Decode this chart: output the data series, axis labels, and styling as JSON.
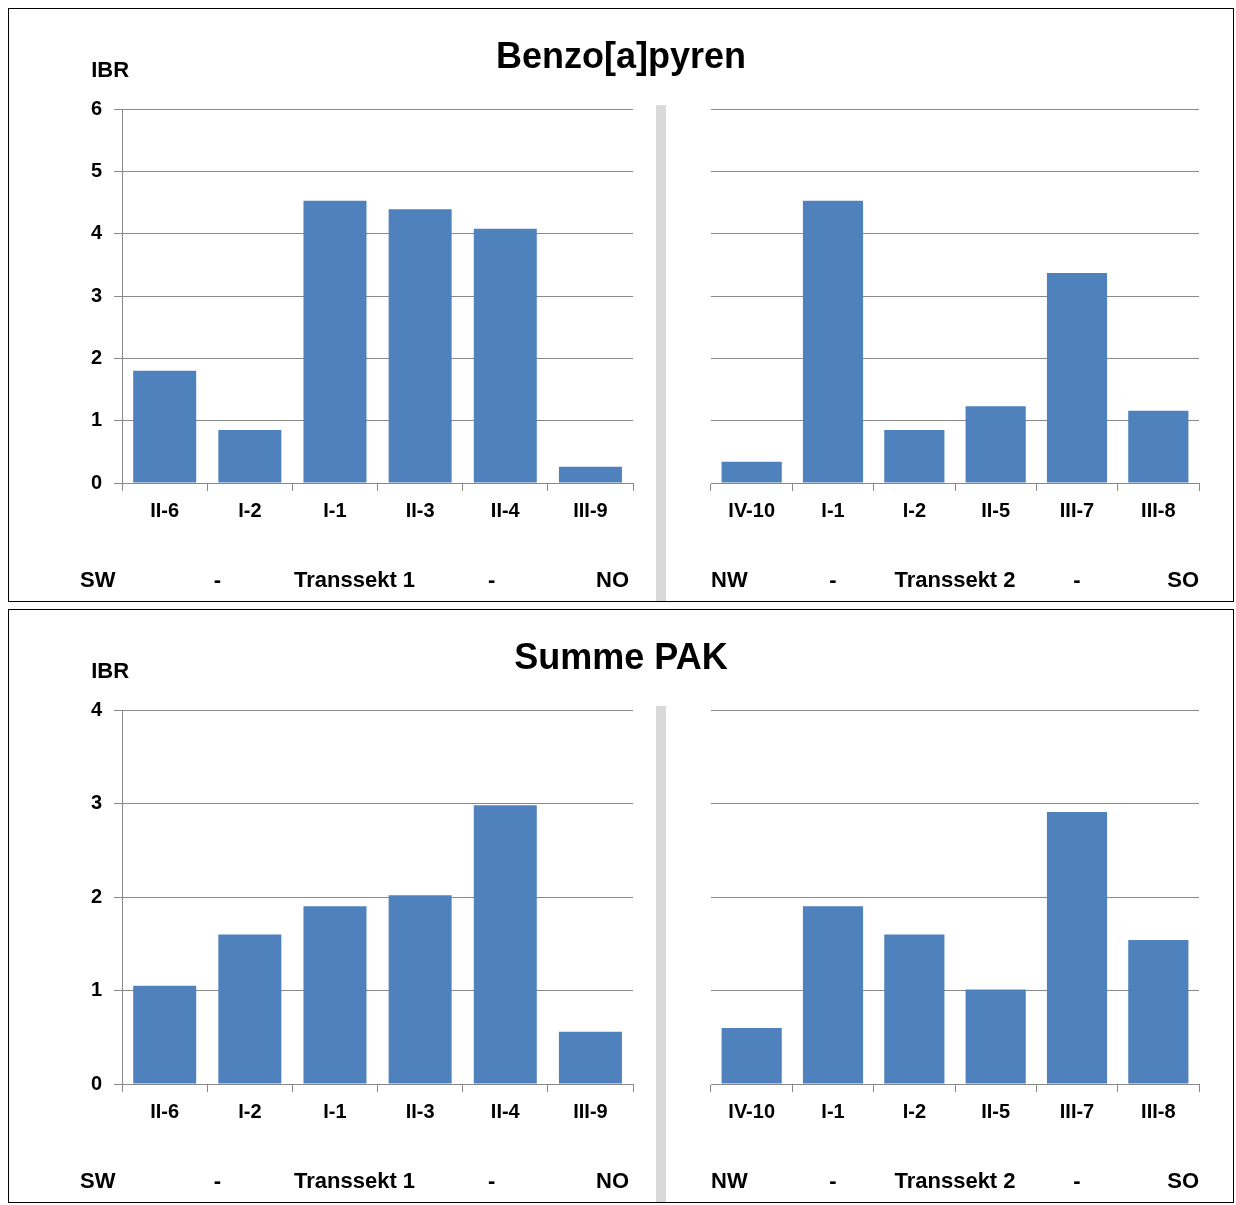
{
  "chart_data": [
    {
      "type": "bar",
      "title": "Benzo[a]pyren",
      "ylabel": "IBR",
      "categories": [
        "II-6",
        "I-2",
        "I-1",
        "II-3",
        "II-4",
        "III-9"
      ],
      "values": [
        1.8,
        0.85,
        4.53,
        4.39,
        4.08,
        0.26
      ],
      "color": "#4f81bd",
      "ylim": [
        0,
        6
      ],
      "yticks": [
        0,
        1,
        2,
        3,
        4,
        5,
        6
      ],
      "grid": "y",
      "annotations": [
        "SW",
        "-",
        "Transsekt 1",
        "-",
        "NO"
      ]
    },
    {
      "type": "bar",
      "categories": [
        "IV-10",
        "I-1",
        "I-2",
        "II-5",
        "III-7",
        "III-8"
      ],
      "values": [
        0.34,
        4.53,
        0.85,
        1.23,
        3.37,
        1.16
      ],
      "color": "#4f81bd",
      "ylim": [
        0,
        6
      ],
      "yticks": [
        0,
        1,
        2,
        3,
        4,
        5,
        6
      ],
      "grid": "y",
      "tick_labels": "x",
      "annotations": [
        "NW",
        "-",
        "Transsekt 2",
        "-",
        "SO"
      ]
    },
    {
      "type": "bar",
      "title": "Summe PAK",
      "ylabel": "IBR",
      "categories": [
        "II-6",
        "I-2",
        "I-1",
        "II-3",
        "II-4",
        "III-9"
      ],
      "values": [
        1.05,
        1.6,
        1.9,
        2.02,
        2.98,
        0.56
      ],
      "color": "#4f81bd",
      "ylim": [
        0,
        4
      ],
      "yticks": [
        0,
        1,
        2,
        3,
        4
      ],
      "grid": "y",
      "annotations": [
        "SW",
        "-",
        "Transsekt 1",
        "-",
        "NO"
      ]
    },
    {
      "type": "bar",
      "categories": [
        "IV-10",
        "I-1",
        "I-2",
        "II-5",
        "III-7",
        "III-8"
      ],
      "values": [
        0.6,
        1.9,
        1.6,
        1.01,
        2.91,
        1.54
      ],
      "color": "#4f81bd",
      "ylim": [
        0,
        4
      ],
      "yticks": [
        0,
        1,
        2,
        3,
        4
      ],
      "grid": "y",
      "tick_labels": "x",
      "annotations": [
        "NW",
        "-",
        "Transsekt 2",
        "-",
        "SO"
      ]
    }
  ]
}
